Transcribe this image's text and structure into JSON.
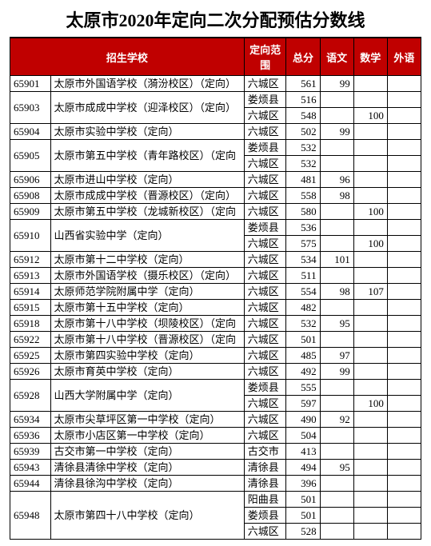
{
  "title": "太原市2020年定向二次分配预估分数线",
  "columns": [
    "招生学校",
    "定向范围",
    "总分",
    "语文",
    "数学",
    "外语"
  ],
  "header_bg": "#c00000",
  "header_fg": "#ffffff",
  "rows": [
    {
      "code": "65901",
      "school": "太原市外国语学校（漪汾校区）（定向）",
      "scopes": [
        {
          "scope": "六城区",
          "total": "561",
          "chn": "99",
          "math": "",
          "eng": ""
        }
      ]
    },
    {
      "code": "65903",
      "school": "太原市成成中学校（迎泽校区）（定向）",
      "scopes": [
        {
          "scope": "娄烦县",
          "total": "516",
          "chn": "",
          "math": "",
          "eng": ""
        },
        {
          "scope": "六城区",
          "total": "548",
          "chn": "",
          "math": "100",
          "eng": ""
        }
      ]
    },
    {
      "code": "65904",
      "school": "太原市实验中学校（定向）",
      "scopes": [
        {
          "scope": "六城区",
          "total": "502",
          "chn": "99",
          "math": "",
          "eng": ""
        }
      ]
    },
    {
      "code": "65905",
      "school": "太原市第五中学校（青年路校区）（定向",
      "scopes": [
        {
          "scope": "娄烦县",
          "total": "532",
          "chn": "",
          "math": "",
          "eng": ""
        },
        {
          "scope": "六城区",
          "total": "532",
          "chn": "",
          "math": "",
          "eng": ""
        }
      ]
    },
    {
      "code": "65906",
      "school": "太原市进山中学校（定向）",
      "scopes": [
        {
          "scope": "六城区",
          "total": "481",
          "chn": "96",
          "math": "",
          "eng": ""
        }
      ]
    },
    {
      "code": "65908",
      "school": "太原市成成中学校（晋源校区）（定向）",
      "scopes": [
        {
          "scope": "六城区",
          "total": "558",
          "chn": "98",
          "math": "",
          "eng": ""
        }
      ]
    },
    {
      "code": "65909",
      "school": "太原市第五中学校（龙城新校区）（定向",
      "scopes": [
        {
          "scope": "六城区",
          "total": "580",
          "chn": "",
          "math": "100",
          "eng": ""
        }
      ]
    },
    {
      "code": "65910",
      "school": "山西省实验中学（定向）",
      "scopes": [
        {
          "scope": "娄烦县",
          "total": "536",
          "chn": "",
          "math": "",
          "eng": ""
        },
        {
          "scope": "六城区",
          "total": "575",
          "chn": "",
          "math": "100",
          "eng": ""
        }
      ]
    },
    {
      "code": "65912",
      "school": "太原市第十二中学校（定向）",
      "scopes": [
        {
          "scope": "六城区",
          "total": "534",
          "chn": "101",
          "math": "",
          "eng": ""
        }
      ]
    },
    {
      "code": "65913",
      "school": "太原市外国语学校（摄乐校区）（定向）",
      "scopes": [
        {
          "scope": "六城区",
          "total": "511",
          "chn": "",
          "math": "",
          "eng": ""
        }
      ]
    },
    {
      "code": "65914",
      "school": "太原师范学院附属中学（定向）",
      "scopes": [
        {
          "scope": "六城区",
          "total": "554",
          "chn": "98",
          "math": "107",
          "eng": ""
        }
      ]
    },
    {
      "code": "65915",
      "school": "太原市第十五中学校（定向）",
      "scopes": [
        {
          "scope": "六城区",
          "total": "482",
          "chn": "",
          "math": "",
          "eng": ""
        }
      ]
    },
    {
      "code": "65918",
      "school": "太原市第十八中学校（坝陵校区）（定向",
      "scopes": [
        {
          "scope": "六城区",
          "total": "532",
          "chn": "95",
          "math": "",
          "eng": ""
        }
      ]
    },
    {
      "code": "65922",
      "school": "太原市第十八中学校（晋源校区）（定向",
      "scopes": [
        {
          "scope": "六城区",
          "total": "501",
          "chn": "",
          "math": "",
          "eng": ""
        }
      ]
    },
    {
      "code": "65925",
      "school": "太原市第四实验中学校（定向）",
      "scopes": [
        {
          "scope": "六城区",
          "total": "485",
          "chn": "97",
          "math": "",
          "eng": ""
        }
      ]
    },
    {
      "code": "65926",
      "school": "太原市育英中学校（定向）",
      "scopes": [
        {
          "scope": "六城区",
          "total": "492",
          "chn": "99",
          "math": "",
          "eng": ""
        }
      ]
    },
    {
      "code": "65928",
      "school": "山西大学附属中学（定向）",
      "scopes": [
        {
          "scope": "娄烦县",
          "total": "555",
          "chn": "",
          "math": "",
          "eng": ""
        },
        {
          "scope": "六城区",
          "total": "597",
          "chn": "",
          "math": "100",
          "eng": ""
        }
      ]
    },
    {
      "code": "65934",
      "school": "太原市尖草坪区第一中学校（定向）",
      "scopes": [
        {
          "scope": "六城区",
          "total": "490",
          "chn": "92",
          "math": "",
          "eng": ""
        }
      ]
    },
    {
      "code": "65936",
      "school": "太原市小店区第一中学校（定向）",
      "scopes": [
        {
          "scope": "六城区",
          "total": "504",
          "chn": "",
          "math": "",
          "eng": ""
        }
      ]
    },
    {
      "code": "65939",
      "school": "古交市第一中学校（定向）",
      "scopes": [
        {
          "scope": "古交市",
          "total": "413",
          "chn": "",
          "math": "",
          "eng": ""
        }
      ]
    },
    {
      "code": "65943",
      "school": "清徐县清徐中学校（定向）",
      "scopes": [
        {
          "scope": "清徐县",
          "total": "494",
          "chn": "95",
          "math": "",
          "eng": ""
        }
      ]
    },
    {
      "code": "65944",
      "school": "清徐县徐沟中学校（定向）",
      "scopes": [
        {
          "scope": "清徐县",
          "total": "396",
          "chn": "",
          "math": "",
          "eng": ""
        }
      ]
    },
    {
      "code": "65948",
      "school": "太原市第四十八中学校（定向）",
      "scopes": [
        {
          "scope": "阳曲县",
          "total": "501",
          "chn": "",
          "math": "",
          "eng": ""
        },
        {
          "scope": "娄烦县",
          "total": "501",
          "chn": "",
          "math": "",
          "eng": ""
        },
        {
          "scope": "六城区",
          "total": "528",
          "chn": "",
          "math": "",
          "eng": ""
        }
      ]
    }
  ]
}
